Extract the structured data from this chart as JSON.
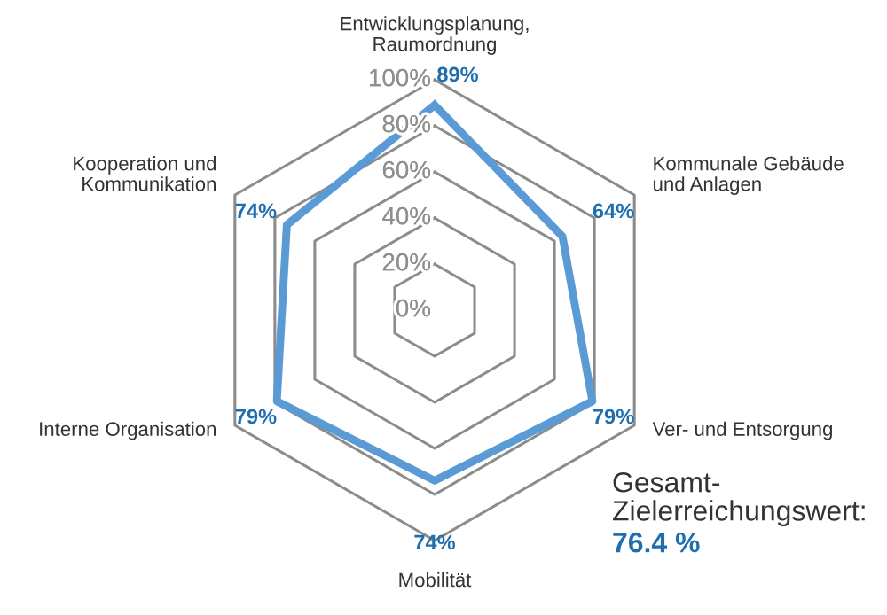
{
  "chart_data": {
    "type": "radar",
    "categories": [
      "Entwicklungsplanung,\nRaumordnung",
      "Kommunale Gebäude\nund Anlagen",
      "Ver- und Entsorgung",
      "Mobilität",
      "Interne Organisation",
      "Kooperation und\nKommunikation"
    ],
    "series": [
      {
        "color": "#5b9bd5",
        "values": [
          89,
          64,
          79,
          74,
          79,
          74
        ],
        "value_labels": [
          "89%",
          "64%",
          "79%",
          "74%",
          "79%",
          "74%"
        ]
      }
    ],
    "ylim": [
      0,
      100
    ],
    "yticks": [
      {
        "value": 0,
        "label": "0%"
      },
      {
        "value": 20,
        "label": "20%"
      },
      {
        "value": 40,
        "label": "40%"
      },
      {
        "value": 60,
        "label": "60%"
      },
      {
        "value": 80,
        "label": "80%"
      },
      {
        "value": 100,
        "label": "100%"
      }
    ],
    "grid": true,
    "marker": "none",
    "line_style": "solid",
    "annotations": [
      "Gesamt-\nZielerreichungswert:",
      "76.4 %"
    ]
  }
}
